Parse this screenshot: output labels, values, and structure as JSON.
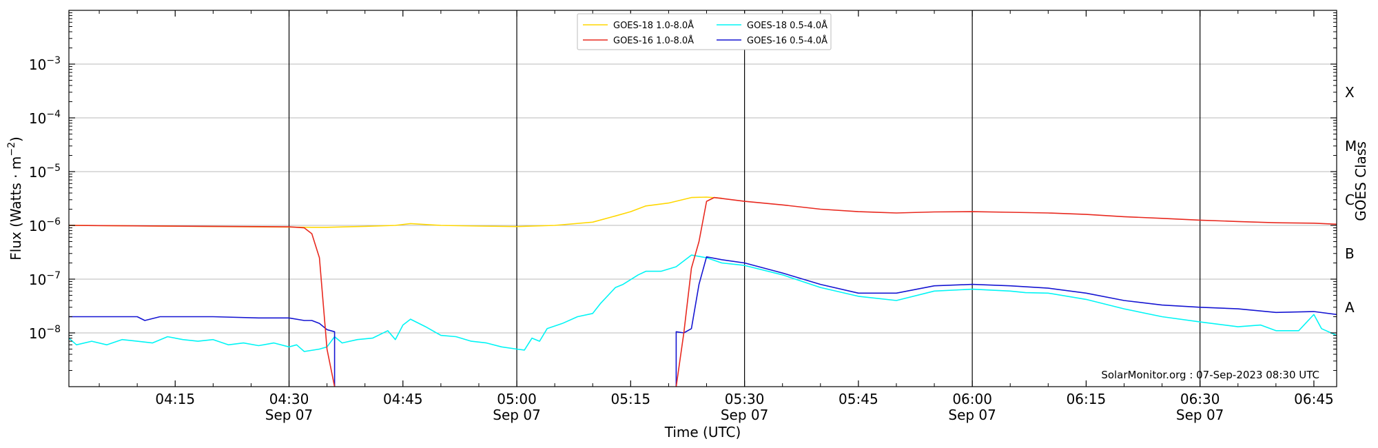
{
  "chart_data": {
    "type": "line",
    "title": "",
    "xlabel": "Time (UTC)",
    "ylabel": "Flux (Watts · m⁻²)",
    "right_axis_label": "GOES Class",
    "credit": "SolarMonitor.org : 07-Sep-2023 08:30 UTC",
    "y_scale": "log",
    "ylim": [
      1e-09,
      0.01
    ],
    "xlim": [
      "04:01",
      "06:48"
    ],
    "grid": "horizontal",
    "legend_position": "top-center",
    "y_ticks": [
      {
        "value": 1e-08,
        "base": "10",
        "exp": "−8"
      },
      {
        "value": 1e-07,
        "base": "10",
        "exp": "−7"
      },
      {
        "value": 1e-06,
        "base": "10",
        "exp": "−6"
      },
      {
        "value": 1e-05,
        "base": "10",
        "exp": "−5"
      },
      {
        "value": 0.0001,
        "base": "10",
        "exp": "−4"
      },
      {
        "value": 0.001,
        "base": "10",
        "exp": "−3"
      }
    ],
    "x_ticks": [
      {
        "time": "04:15",
        "label": "04:15",
        "date": ""
      },
      {
        "time": "04:30",
        "label": "04:30",
        "date": "Sep 07"
      },
      {
        "time": "04:45",
        "label": "04:45",
        "date": ""
      },
      {
        "time": "05:00",
        "label": "05:00",
        "date": "Sep 07"
      },
      {
        "time": "05:15",
        "label": "05:15",
        "date": ""
      },
      {
        "time": "05:30",
        "label": "05:30",
        "date": "Sep 07"
      },
      {
        "time": "05:45",
        "label": "05:45",
        "date": ""
      },
      {
        "time": "06:00",
        "label": "06:00",
        "date": "Sep 07"
      },
      {
        "time": "06:15",
        "label": "06:15",
        "date": ""
      },
      {
        "time": "06:30",
        "label": "06:30",
        "date": "Sep 07"
      },
      {
        "time": "06:45",
        "label": "06:45",
        "date": ""
      }
    ],
    "vertical_lines": [
      "04:30",
      "05:00",
      "05:30",
      "06:00",
      "06:30"
    ],
    "goes_classes": [
      {
        "label": "X",
        "value": 0.0003
      },
      {
        "label": "M",
        "value": 3e-05
      },
      {
        "label": "C",
        "value": 3e-06
      },
      {
        "label": "B",
        "value": 3e-07
      },
      {
        "label": "A",
        "value": 3e-08
      }
    ],
    "series": [
      {
        "name": "GOES-18 1.0-8.0Å",
        "color": "#ffd700",
        "points": [
          [
            "04:01",
            1e-06
          ],
          [
            "04:30",
            9.3e-07
          ],
          [
            "04:33",
            9.2e-07
          ],
          [
            "04:35",
            9.2e-07
          ],
          [
            "04:40",
            9.6e-07
          ],
          [
            "04:44",
            1e-06
          ],
          [
            "04:46",
            1.08e-06
          ],
          [
            "04:50",
            1e-06
          ],
          [
            "04:55",
            9.7e-07
          ],
          [
            "05:00",
            9.5e-07
          ],
          [
            "05:05",
            1e-06
          ],
          [
            "05:10",
            1.15e-06
          ],
          [
            "05:13",
            1.5e-06
          ],
          [
            "05:15",
            1.8e-06
          ],
          [
            "05:17",
            2.3e-06
          ],
          [
            "05:20",
            2.6e-06
          ],
          [
            "05:23",
            3.3e-06
          ],
          [
            "05:25",
            3.35e-06
          ],
          [
            "05:27",
            3.2e-06
          ]
        ]
      },
      {
        "name": "GOES-16 1.0-8.0Å",
        "color": "#e8281e",
        "points": [
          [
            "04:01",
            1e-06
          ],
          [
            "04:10",
            9.8e-07
          ],
          [
            "04:20",
            9.6e-07
          ],
          [
            "04:30",
            9.4e-07
          ],
          [
            "04:32",
            9e-07
          ],
          [
            "04:33",
            7e-07
          ],
          [
            "04:34",
            2.5e-07
          ],
          [
            "04:35",
            5e-09
          ],
          [
            "04:36",
            1e-09
          ],
          null,
          [
            "05:21",
            1e-09
          ],
          [
            "05:22",
            1e-08
          ],
          [
            "05:23",
            1.6e-07
          ],
          [
            "05:24",
            5e-07
          ],
          [
            "05:25",
            2.8e-06
          ],
          [
            "05:26",
            3.3e-06
          ],
          [
            "05:30",
            2.8e-06
          ],
          [
            "05:35",
            2.4e-06
          ],
          [
            "05:40",
            2e-06
          ],
          [
            "05:45",
            1.8e-06
          ],
          [
            "05:50",
            1.7e-06
          ],
          [
            "05:55",
            1.78e-06
          ],
          [
            "06:00",
            1.8e-06
          ],
          [
            "06:05",
            1.75e-06
          ],
          [
            "06:10",
            1.7e-06
          ],
          [
            "06:15",
            1.6e-06
          ],
          [
            "06:20",
            1.45e-06
          ],
          [
            "06:25",
            1.35e-06
          ],
          [
            "06:30",
            1.25e-06
          ],
          [
            "06:35",
            1.18e-06
          ],
          [
            "06:40",
            1.12e-06
          ],
          [
            "06:45",
            1.1e-06
          ],
          [
            "06:48",
            1.05e-06
          ]
        ]
      },
      {
        "name": "GOES-18 0.5-4.0Å",
        "color": "#00f5f5",
        "points": [
          [
            "04:01",
            8e-09
          ],
          [
            "04:02",
            6e-09
          ],
          [
            "04:04",
            7e-09
          ],
          [
            "04:06",
            6e-09
          ],
          [
            "04:08",
            7.5e-09
          ],
          [
            "04:10",
            7e-09
          ],
          [
            "04:12",
            6.5e-09
          ],
          [
            "04:14",
            8.5e-09
          ],
          [
            "04:16",
            7.5e-09
          ],
          [
            "04:18",
            7e-09
          ],
          [
            "04:20",
            7.5e-09
          ],
          [
            "04:22",
            6e-09
          ],
          [
            "04:24",
            6.5e-09
          ],
          [
            "04:26",
            5.8e-09
          ],
          [
            "04:28",
            6.5e-09
          ],
          [
            "04:30",
            5.5e-09
          ],
          [
            "04:31",
            6e-09
          ],
          [
            "04:32",
            4.5e-09
          ],
          [
            "04:34",
            5e-09
          ],
          [
            "04:35",
            5.5e-09
          ],
          [
            "04:36",
            8.5e-09
          ],
          [
            "04:37",
            6.5e-09
          ],
          [
            "04:39",
            7.5e-09
          ],
          [
            "04:41",
            8e-09
          ],
          [
            "04:43",
            1.1e-08
          ],
          [
            "04:44",
            7.5e-09
          ],
          [
            "04:45",
            1.4e-08
          ],
          [
            "04:46",
            1.8e-08
          ],
          [
            "04:48",
            1.3e-08
          ],
          [
            "04:50",
            9e-09
          ],
          [
            "04:52",
            8.5e-09
          ],
          [
            "04:54",
            7e-09
          ],
          [
            "04:56",
            6.5e-09
          ],
          [
            "04:58",
            5.5e-09
          ],
          [
            "05:00",
            5e-09
          ],
          [
            "05:01",
            4.8e-09
          ],
          [
            "05:02",
            8e-09
          ],
          [
            "05:03",
            7e-09
          ],
          [
            "05:04",
            1.2e-08
          ],
          [
            "05:06",
            1.5e-08
          ],
          [
            "05:08",
            2e-08
          ],
          [
            "05:10",
            2.3e-08
          ],
          [
            "05:11",
            3.5e-08
          ],
          [
            "05:13",
            7e-08
          ],
          [
            "05:14",
            8e-08
          ],
          [
            "05:16",
            1.2e-07
          ],
          [
            "05:17",
            1.4e-07
          ],
          [
            "05:19",
            1.4e-07
          ],
          [
            "05:21",
            1.7e-07
          ],
          [
            "05:23",
            2.8e-07
          ],
          [
            "05:25",
            2.5e-07
          ],
          [
            "05:27",
            2e-07
          ],
          [
            "05:30",
            1.8e-07
          ],
          [
            "05:35",
            1.2e-07
          ],
          [
            "05:40",
            7e-08
          ],
          [
            "05:45",
            4.8e-08
          ],
          [
            "05:50",
            4e-08
          ],
          [
            "05:55",
            6e-08
          ],
          [
            "06:00",
            6.5e-08
          ],
          [
            "06:05",
            6e-08
          ],
          [
            "06:07",
            5.6e-08
          ],
          [
            "06:10",
            5.5e-08
          ],
          [
            "06:15",
            4.2e-08
          ],
          [
            "06:20",
            2.8e-08
          ],
          [
            "06:25",
            2e-08
          ],
          [
            "06:30",
            1.6e-08
          ],
          [
            "06:35",
            1.3e-08
          ],
          [
            "06:38",
            1.4e-08
          ],
          [
            "06:40",
            1.1e-08
          ],
          [
            "06:43",
            1.1e-08
          ],
          [
            "06:45",
            2.2e-08
          ],
          [
            "06:46",
            1.2e-08
          ],
          [
            "06:48",
            9e-09
          ]
        ]
      },
      {
        "name": "GOES-16 0.5-4.0Å",
        "color": "#1414d2",
        "points": [
          [
            "04:01",
            2e-08
          ],
          [
            "04:05",
            2e-08
          ],
          [
            "04:10",
            2e-08
          ],
          [
            "04:11",
            1.7e-08
          ],
          [
            "04:13",
            2e-08
          ],
          [
            "04:20",
            2e-08
          ],
          [
            "04:26",
            1.9e-08
          ],
          [
            "04:30",
            1.9e-08
          ],
          [
            "04:32",
            1.7e-08
          ],
          [
            "04:33",
            1.7e-08
          ],
          [
            "04:34",
            1.5e-08
          ],
          [
            "04:35",
            1.15e-08
          ],
          [
            "04:36",
            1.05e-08
          ],
          [
            "04:36",
            1e-09
          ],
          null,
          [
            "05:21",
            1e-09
          ],
          [
            "05:21",
            1.05e-08
          ],
          [
            "05:22",
            1e-08
          ],
          [
            "05:23",
            1.2e-08
          ],
          [
            "05:24",
            8e-08
          ],
          [
            "05:25",
            2.6e-07
          ],
          [
            "05:27",
            2.3e-07
          ],
          [
            "05:30",
            2e-07
          ],
          [
            "05:35",
            1.3e-07
          ],
          [
            "05:40",
            8e-08
          ],
          [
            "05:45",
            5.5e-08
          ],
          [
            "05:50",
            5.5e-08
          ],
          [
            "05:55",
            7.5e-08
          ],
          [
            "06:00",
            8e-08
          ],
          [
            "06:05",
            7.5e-08
          ],
          [
            "06:10",
            6.8e-08
          ],
          [
            "06:15",
            5.5e-08
          ],
          [
            "06:20",
            4e-08
          ],
          [
            "06:25",
            3.3e-08
          ],
          [
            "06:30",
            3e-08
          ],
          [
            "06:35",
            2.8e-08
          ],
          [
            "06:40",
            2.4e-08
          ],
          [
            "06:45",
            2.5e-08
          ],
          [
            "06:48",
            2.2e-08
          ]
        ]
      }
    ]
  }
}
